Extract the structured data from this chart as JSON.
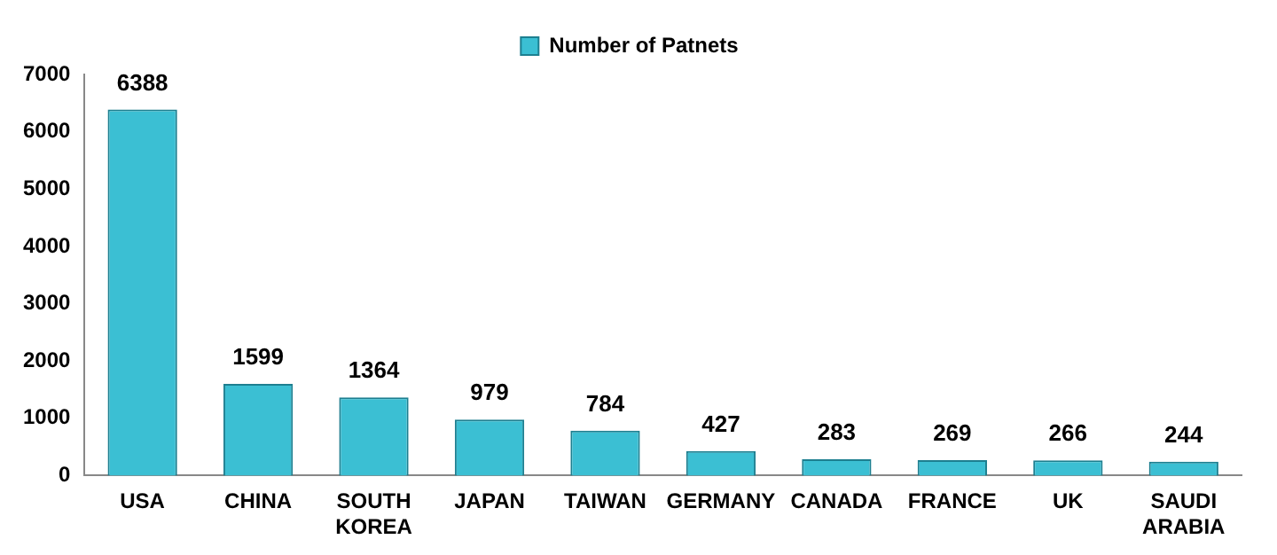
{
  "chart_data": {
    "type": "bar",
    "categories": [
      "USA",
      "CHINA",
      "SOUTH KOREA",
      "JAPAN",
      "TAIWAN",
      "GERMANY",
      "CANADA",
      "FRANCE",
      "UK",
      "SAUDI ARABIA"
    ],
    "series": [
      {
        "name": "Number of Patnets",
        "color": "#3bbfd3",
        "values": [
          6388,
          1599,
          1364,
          979,
          784,
          427,
          283,
          269,
          266,
          244
        ]
      }
    ],
    "ylim": [
      0,
      7000
    ],
    "yticks": [
      0,
      1000,
      2000,
      3000,
      4000,
      5000,
      6000,
      7000
    ],
    "grid": false,
    "legend": "top",
    "data_labels": true
  }
}
